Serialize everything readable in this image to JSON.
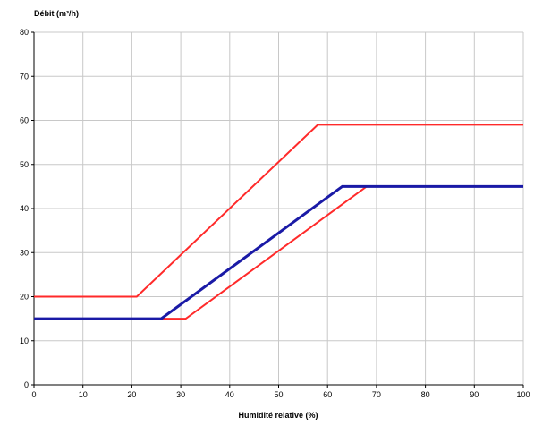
{
  "chart_data": {
    "type": "line",
    "title": "",
    "ylabel": "Débit (m³/h)",
    "xlabel": "Humidité relative (%)",
    "xlim": [
      0,
      100
    ],
    "ylim": [
      0,
      80
    ],
    "x_ticks": [
      0,
      10,
      20,
      30,
      40,
      50,
      60,
      70,
      80,
      90,
      100
    ],
    "y_ticks": [
      0,
      10,
      20,
      30,
      40,
      50,
      60,
      70,
      80
    ],
    "grid": true,
    "legend": "none",
    "series": [
      {
        "color": "#ff2a2a",
        "points": [
          [
            0,
            20
          ],
          [
            21,
            20
          ],
          [
            58,
            59
          ],
          [
            100,
            59
          ]
        ]
      },
      {
        "color": "#ff2a2a",
        "points": [
          [
            0,
            15
          ],
          [
            31,
            15
          ],
          [
            68,
            45
          ],
          [
            100,
            45
          ]
        ]
      },
      {
        "color": "#1a1aa6",
        "points": [
          [
            0,
            15
          ],
          [
            26,
            15
          ],
          [
            63,
            45
          ],
          [
            100,
            45
          ]
        ]
      }
    ]
  }
}
